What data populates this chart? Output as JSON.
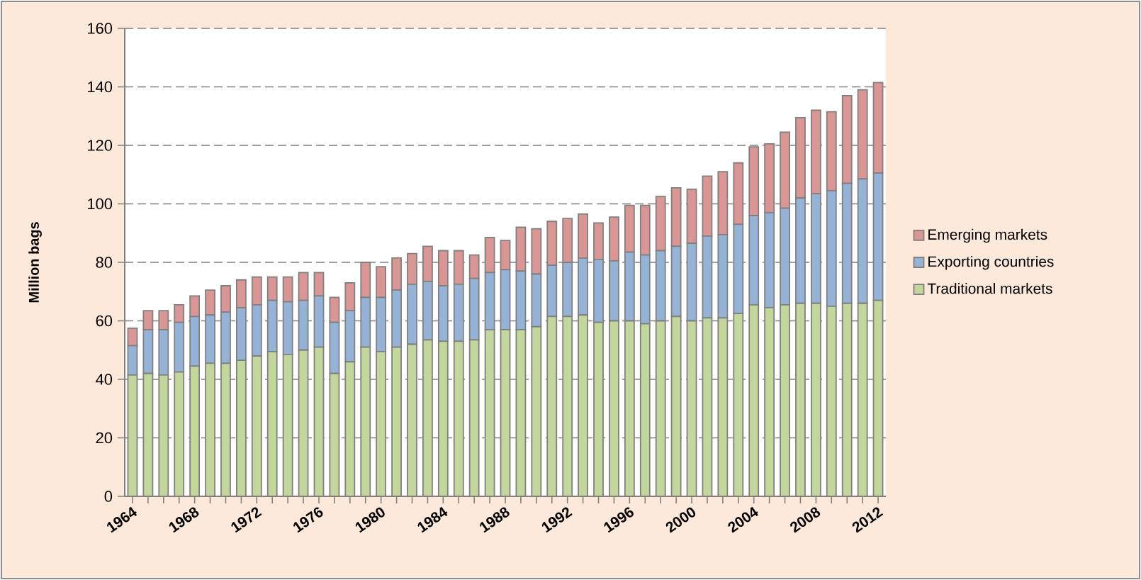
{
  "chart_data": {
    "type": "bar",
    "stacked": true,
    "ylabel": "Million bags",
    "categories": [
      "1964",
      null,
      null,
      null,
      "1968",
      null,
      null,
      null,
      "1972",
      null,
      null,
      null,
      "1976",
      null,
      null,
      null,
      "1980",
      null,
      null,
      null,
      "1984",
      null,
      null,
      null,
      "1988",
      null,
      null,
      null,
      "1992",
      null,
      null,
      null,
      "1996",
      null,
      null,
      null,
      "2000",
      null,
      null,
      null,
      "2004",
      null,
      null,
      null,
      "2008",
      null,
      null,
      null,
      "2012"
    ],
    "series": [
      {
        "name": "Traditional markets",
        "color": "#c3d69b",
        "values": [
          41.5,
          42,
          41.5,
          42.5,
          44.5,
          45.5,
          45.5,
          46.5,
          48,
          49.5,
          48.5,
          50,
          51,
          42,
          46,
          51,
          49.5,
          51,
          52,
          53.5,
          53,
          53,
          53.5,
          57,
          57,
          57,
          58,
          61.5,
          61.5,
          62,
          59.5,
          60,
          60,
          59,
          60,
          61.5,
          60,
          61,
          61,
          62.5,
          65.5,
          64.5,
          65.5,
          66,
          66,
          65,
          66,
          66,
          67
        ]
      },
      {
        "name": "Exporting countries",
        "color": "#95b3d7",
        "values": [
          10,
          15,
          15.5,
          17,
          17,
          16.5,
          17.5,
          18,
          17.5,
          17.5,
          18,
          17,
          17.5,
          17.5,
          17.5,
          17,
          18.5,
          19.5,
          20.5,
          20,
          19,
          19.5,
          21,
          19.5,
          20.5,
          20,
          18,
          17.5,
          18.5,
          19.5,
          21.5,
          20.5,
          23.5,
          23.5,
          24,
          24,
          26.5,
          28,
          28.5,
          30.5,
          30.5,
          32.5,
          33,
          36,
          37.5,
          39.5,
          41,
          42.5,
          43.5
        ]
      },
      {
        "name": "Emerging markets",
        "color": "#d99694",
        "values": [
          6,
          6.5,
          6.5,
          6,
          7,
          8.5,
          9,
          9.5,
          9.5,
          8,
          8.5,
          9.5,
          8,
          8.5,
          9.5,
          12,
          10.5,
          11,
          10.5,
          12,
          12,
          11.5,
          8,
          12,
          10,
          15,
          15.5,
          15,
          15,
          15,
          12.5,
          15,
          16,
          17,
          18.5,
          20,
          18.5,
          20.5,
          21.5,
          21,
          23.5,
          23.5,
          26,
          27.5,
          28.5,
          27,
          30,
          30.5,
          31
        ]
      }
    ],
    "ylim": [
      0,
      160
    ],
    "yticks": [
      0,
      20,
      40,
      60,
      80,
      100,
      120,
      140,
      160
    ],
    "grid": "y",
    "legend": "right"
  }
}
